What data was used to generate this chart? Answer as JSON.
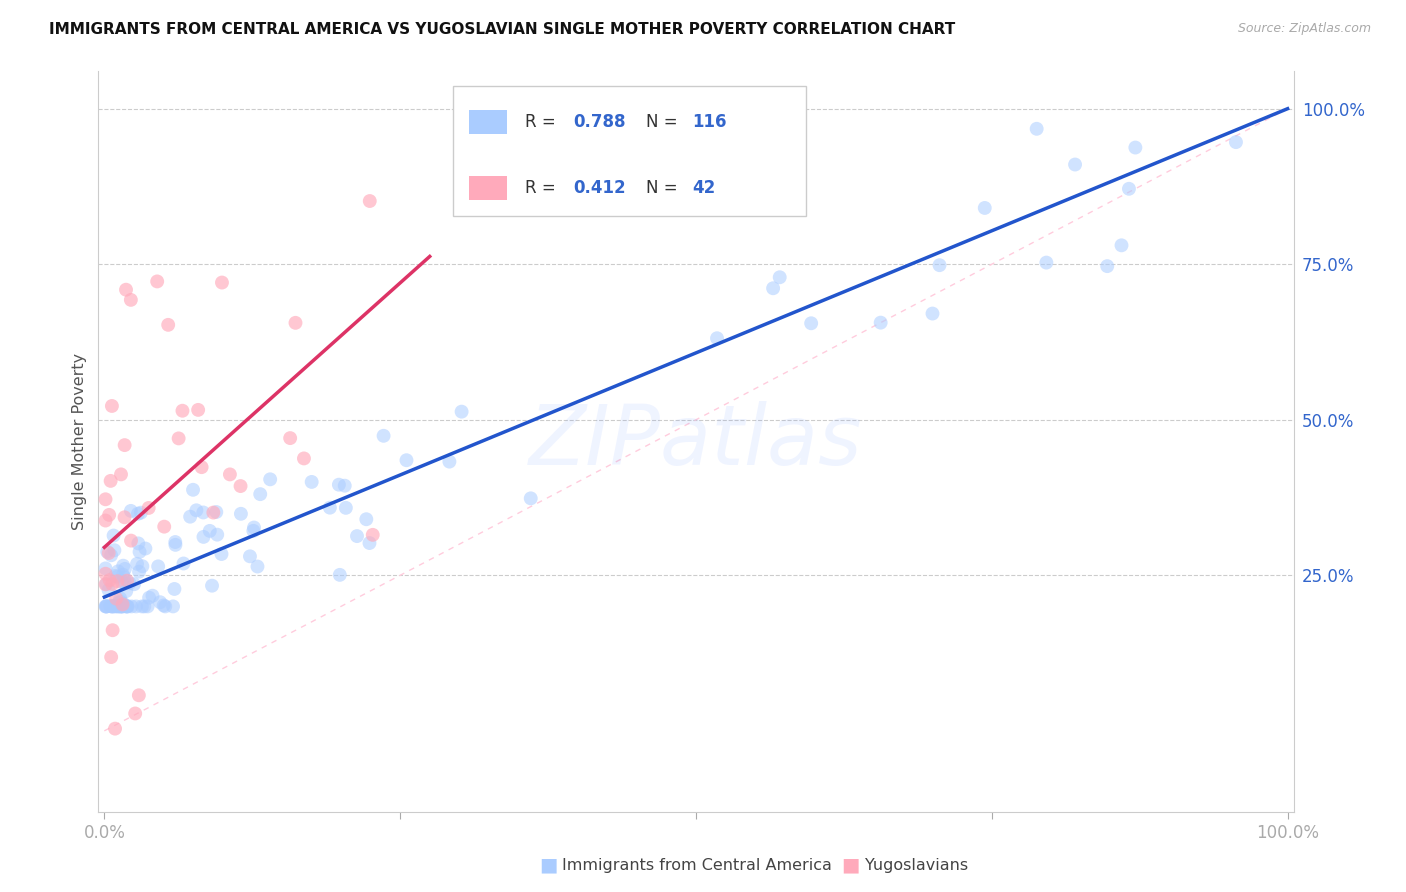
{
  "title": "IMMIGRANTS FROM CENTRAL AMERICA VS YUGOSLAVIAN SINGLE MOTHER POVERTY CORRELATION CHART",
  "source": "Source: ZipAtlas.com",
  "ylabel": "Single Mother Poverty",
  "legend_label1": "Immigrants from Central America",
  "legend_label2": "Yugoslavians",
  "R1": "0.788",
  "N1": "116",
  "R2": "0.412",
  "N2": "42",
  "color_blue": "#aaccff",
  "color_pink": "#ffaabb",
  "color_blue_line": "#2255cc",
  "color_pink_line": "#dd3366",
  "color_diag": "#ffccdd",
  "watermark": "ZIPatlas",
  "right_yticks": [
    0.25,
    0.5,
    0.75,
    1.0
  ],
  "right_yticklabels": [
    "25.0%",
    "50.0%",
    "75.0%",
    "100.0%"
  ],
  "blue_intercept": 0.215,
  "blue_slope": 0.785,
  "pink_intercept": 0.295,
  "pink_slope": 1.7,
  "pink_line_xmax": 0.275,
  "ylim_low": -0.13,
  "ylim_high": 1.06,
  "xlim_low": -0.005,
  "xlim_high": 1.005
}
